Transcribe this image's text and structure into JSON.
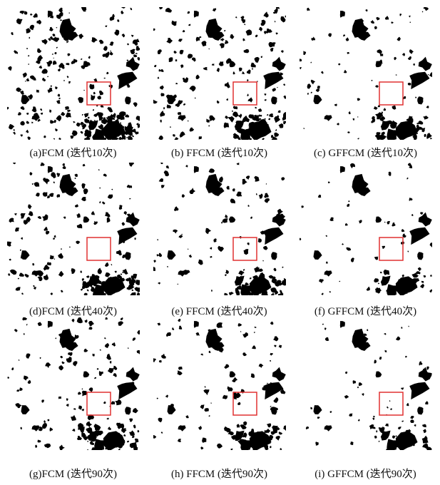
{
  "panels": [
    {
      "caption": "(a)FCM (迭代10次)"
    },
    {
      "caption": "(b) FFCM (迭代10次)"
    },
    {
      "caption": "(c) GFFCM (迭代10次)"
    },
    {
      "caption": "(d)FCM (迭代40次)"
    },
    {
      "caption": "(e) FFCM (迭代40次)"
    },
    {
      "caption": "(f) GFFCM (迭代40次)"
    },
    {
      "caption": "(g)FCM (迭代90次)"
    },
    {
      "caption": "(h) FFCM (迭代90次)"
    },
    {
      "caption": "(i) GFFCM (迭代90次)"
    }
  ]
}
